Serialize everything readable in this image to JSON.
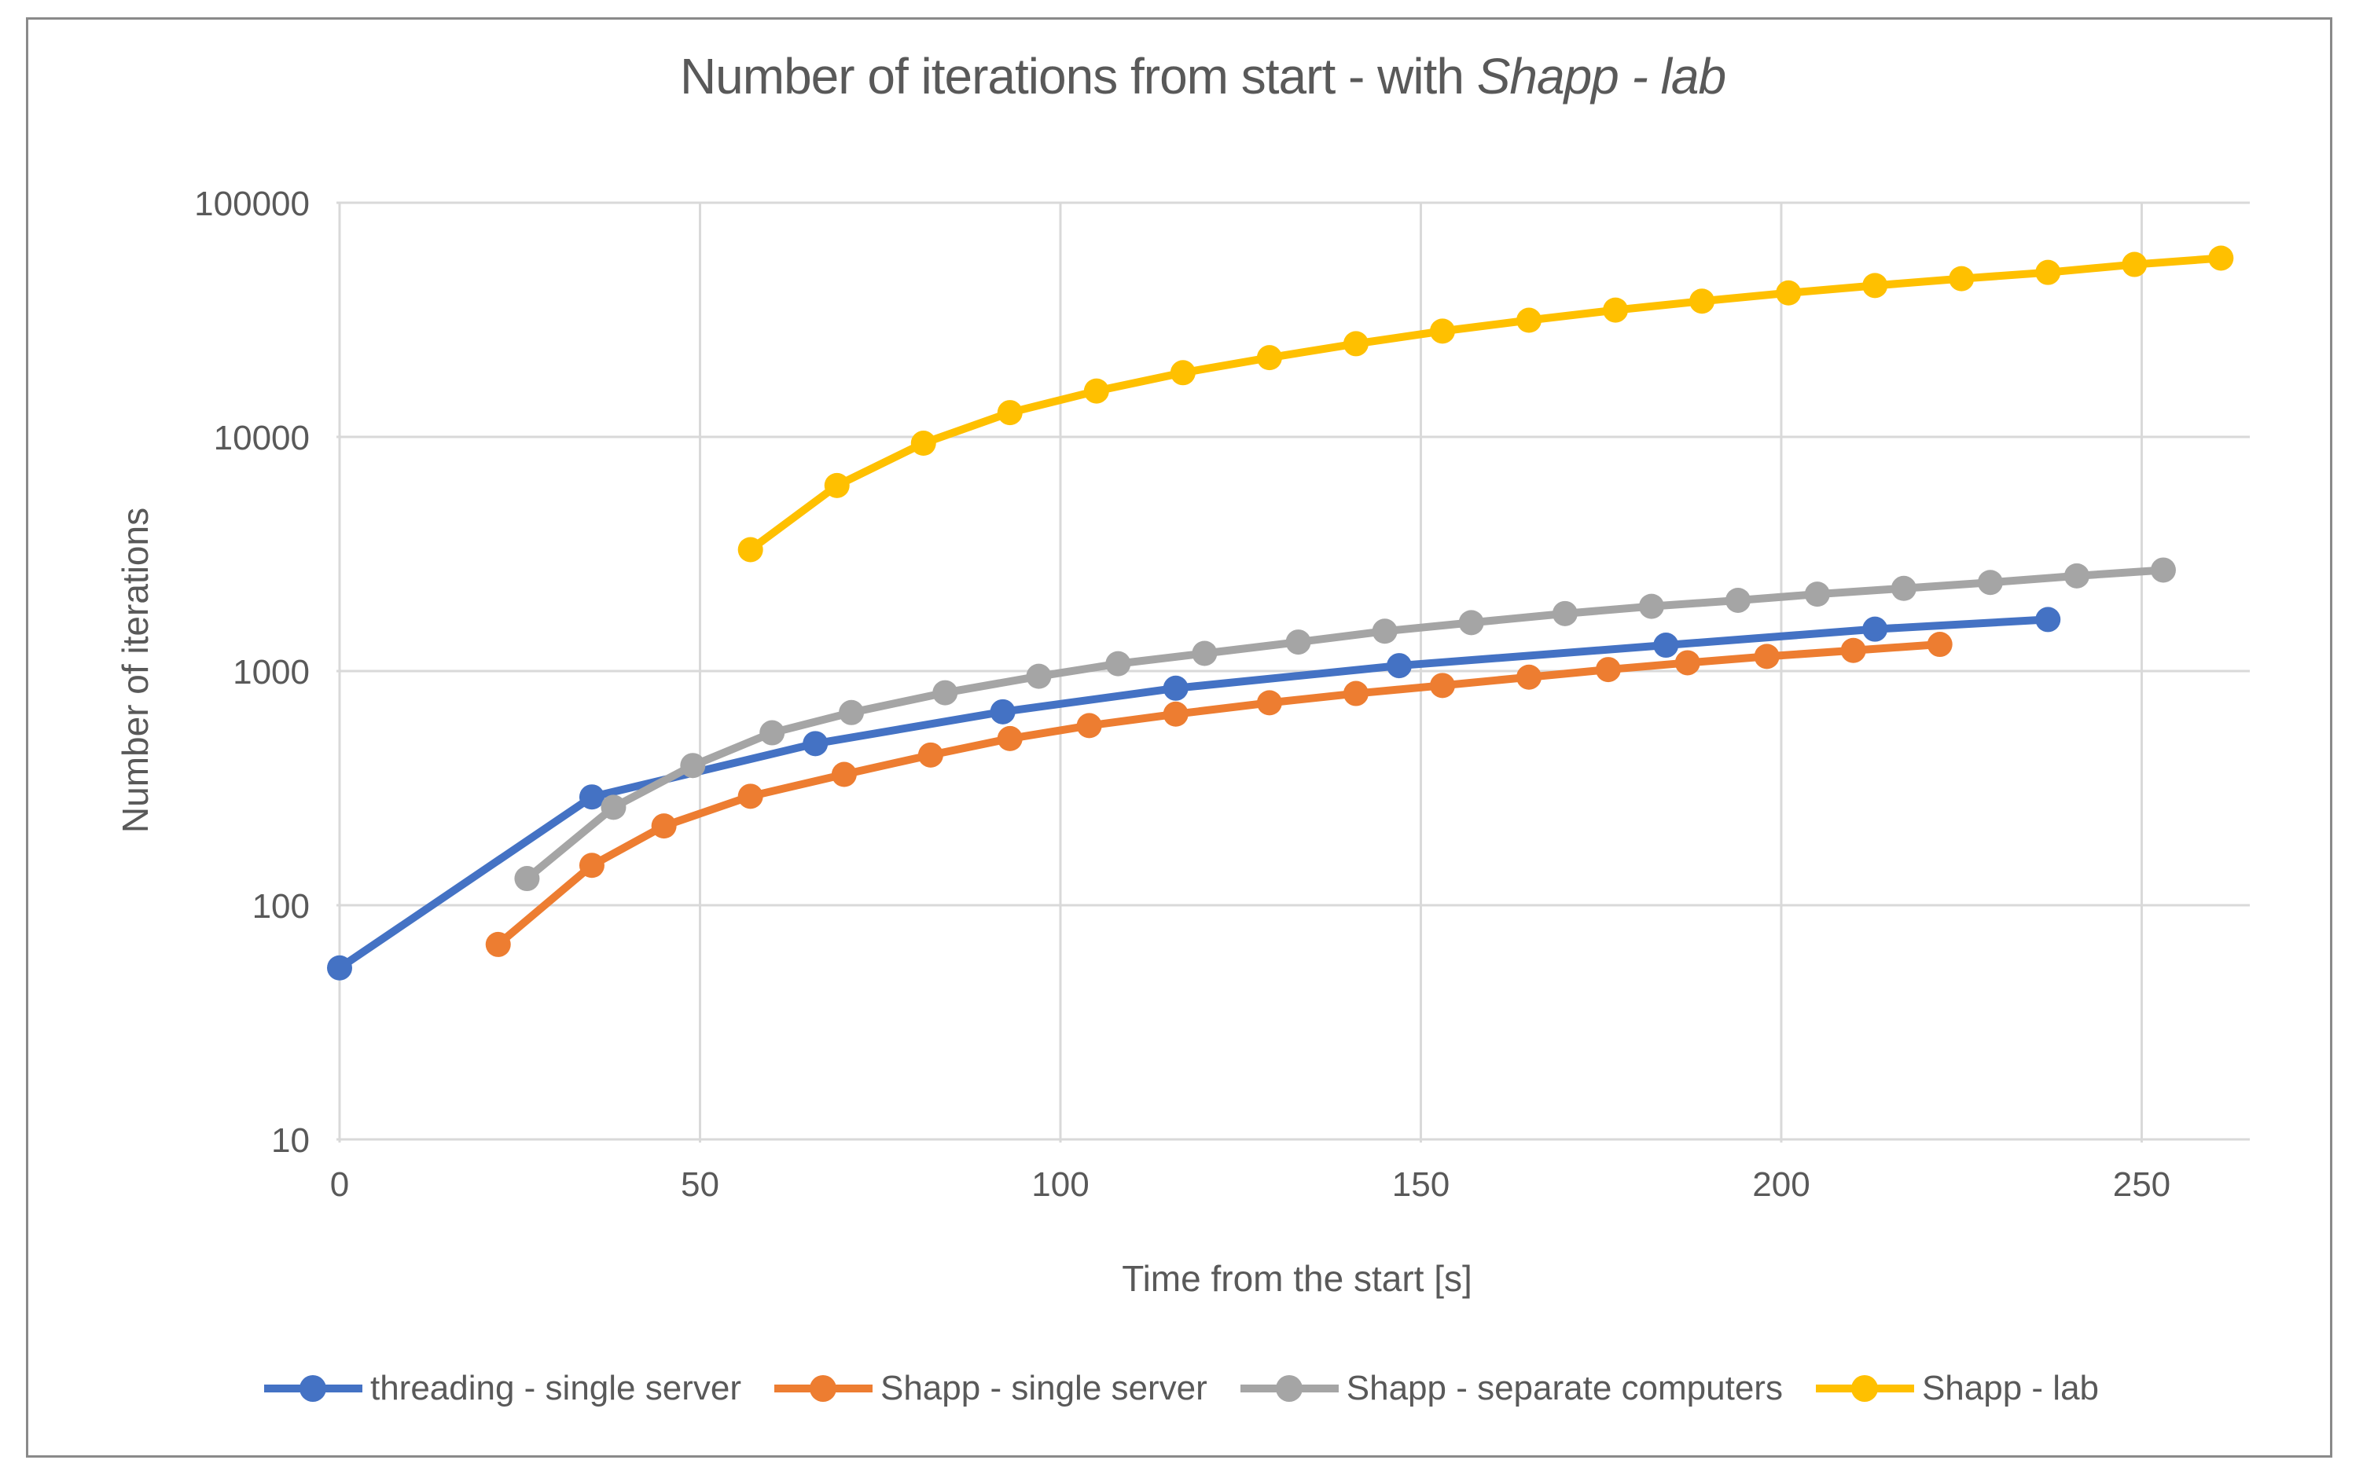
{
  "title": {
    "regular": "Number of iterations from start - with ",
    "italic": "Shapp - lab"
  },
  "colors": {
    "text": "#595959",
    "gridline": "#d9d9d9",
    "frame_border": "#8a8a8a",
    "background": "#ffffff"
  },
  "chart_data": {
    "type": "line",
    "title": "Number of iterations from start - with Shapp - lab",
    "xlabel": "Time from the start [s]",
    "ylabel": "Number of iterations",
    "x_ticks": [
      0,
      50,
      100,
      150,
      200,
      250
    ],
    "y_ticks": [
      10,
      100,
      1000,
      10000,
      100000
    ],
    "y_scale": "log",
    "xlim": [
      0,
      265
    ],
    "ylim": [
      10,
      100000
    ],
    "grid": true,
    "legend_position": "bottom",
    "marker": "circle",
    "series": [
      {
        "name": "threading - single server",
        "color": "#4472C4",
        "x": [
          0,
          35,
          66,
          92,
          116,
          147,
          184,
          213,
          237
        ],
        "y": [
          54,
          290,
          490,
          670,
          845,
          1055,
          1290,
          1510,
          1660
        ]
      },
      {
        "name": "Shapp - single server",
        "color": "#ED7D31",
        "x": [
          22,
          35,
          45,
          57,
          70,
          82,
          93,
          104,
          116,
          129,
          141,
          153,
          165,
          176,
          187,
          198,
          210,
          222
        ],
        "y": [
          68,
          148,
          218,
          292,
          362,
          438,
          515,
          585,
          655,
          732,
          802,
          868,
          942,
          1015,
          1085,
          1155,
          1225,
          1300
        ]
      },
      {
        "name": "Shapp - separate computers",
        "color": "#A5A5A5",
        "x": [
          26,
          38,
          49,
          60,
          71,
          84,
          97,
          108,
          120,
          133,
          145,
          157,
          170,
          182,
          194,
          205,
          217,
          229,
          241,
          253
        ],
        "y": [
          130,
          262,
          395,
          545,
          665,
          808,
          950,
          1075,
          1190,
          1330,
          1480,
          1610,
          1760,
          1890,
          2005,
          2130,
          2255,
          2390,
          2550,
          2700
        ]
      },
      {
        "name": "Shapp - lab",
        "color": "#FFC000",
        "x": [
          57,
          69,
          81,
          93,
          105,
          117,
          129,
          141,
          153,
          165,
          177,
          189,
          201,
          213,
          225,
          237,
          249,
          261
        ],
        "y": [
          3300,
          6200,
          9400,
          12700,
          15700,
          18800,
          21800,
          25000,
          28300,
          31500,
          34800,
          38000,
          41200,
          44300,
          47400,
          50400,
          54500,
          58000
        ]
      }
    ]
  }
}
